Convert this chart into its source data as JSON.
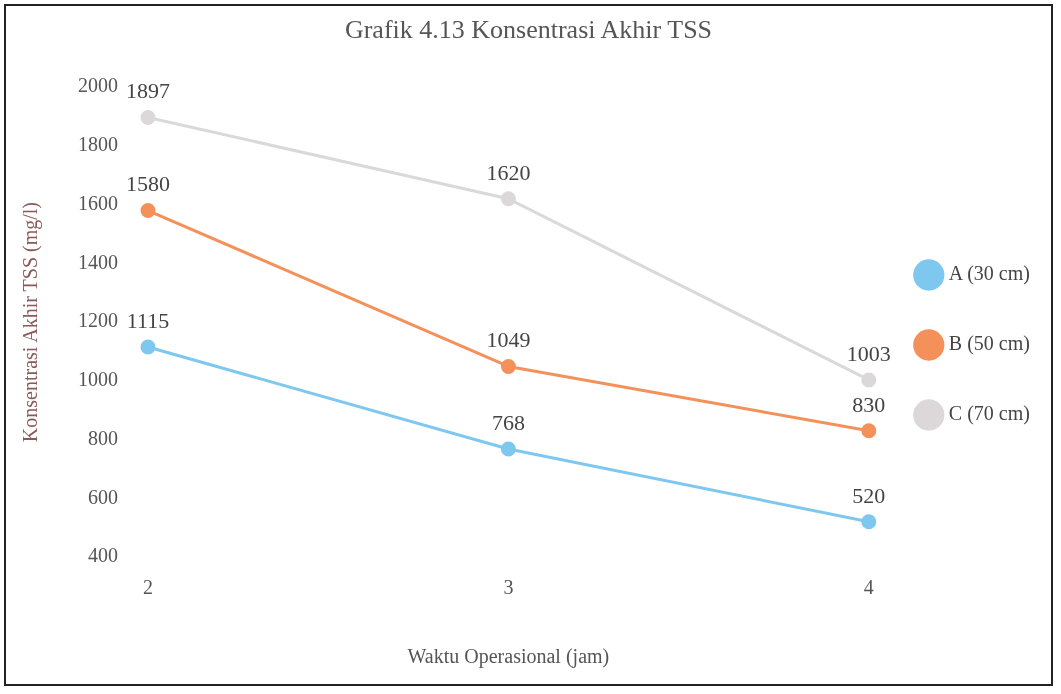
{
  "chart_data": {
    "type": "line",
    "title": "Grafik 4.13 Konsentrasi Akhir TSS",
    "xlabel": "Waktu Operasional (jam)",
    "ylabel": "Konsentrasi Akhir TSS (mg/l)",
    "categories": [
      "2",
      "3",
      "4"
    ],
    "series": [
      {
        "name": "A (30 cm)",
        "color": "#7ec8f0",
        "values": [
          1115,
          768,
          520
        ]
      },
      {
        "name": "B (50 cm)",
        "color": "#f4915a",
        "values": [
          1580,
          1049,
          830
        ]
      },
      {
        "name": "C (70 cm)",
        "color": "#dcd8da",
        "values": [
          1897,
          1620,
          1003
        ]
      }
    ],
    "ylim": [
      400,
      2000
    ],
    "yticks": [
      400,
      600,
      800,
      1000,
      1200,
      1400,
      1600,
      1800,
      2000
    ],
    "grid": false,
    "legend": "right",
    "marker": "circle",
    "line_style": "solid",
    "data_labels": true
  }
}
